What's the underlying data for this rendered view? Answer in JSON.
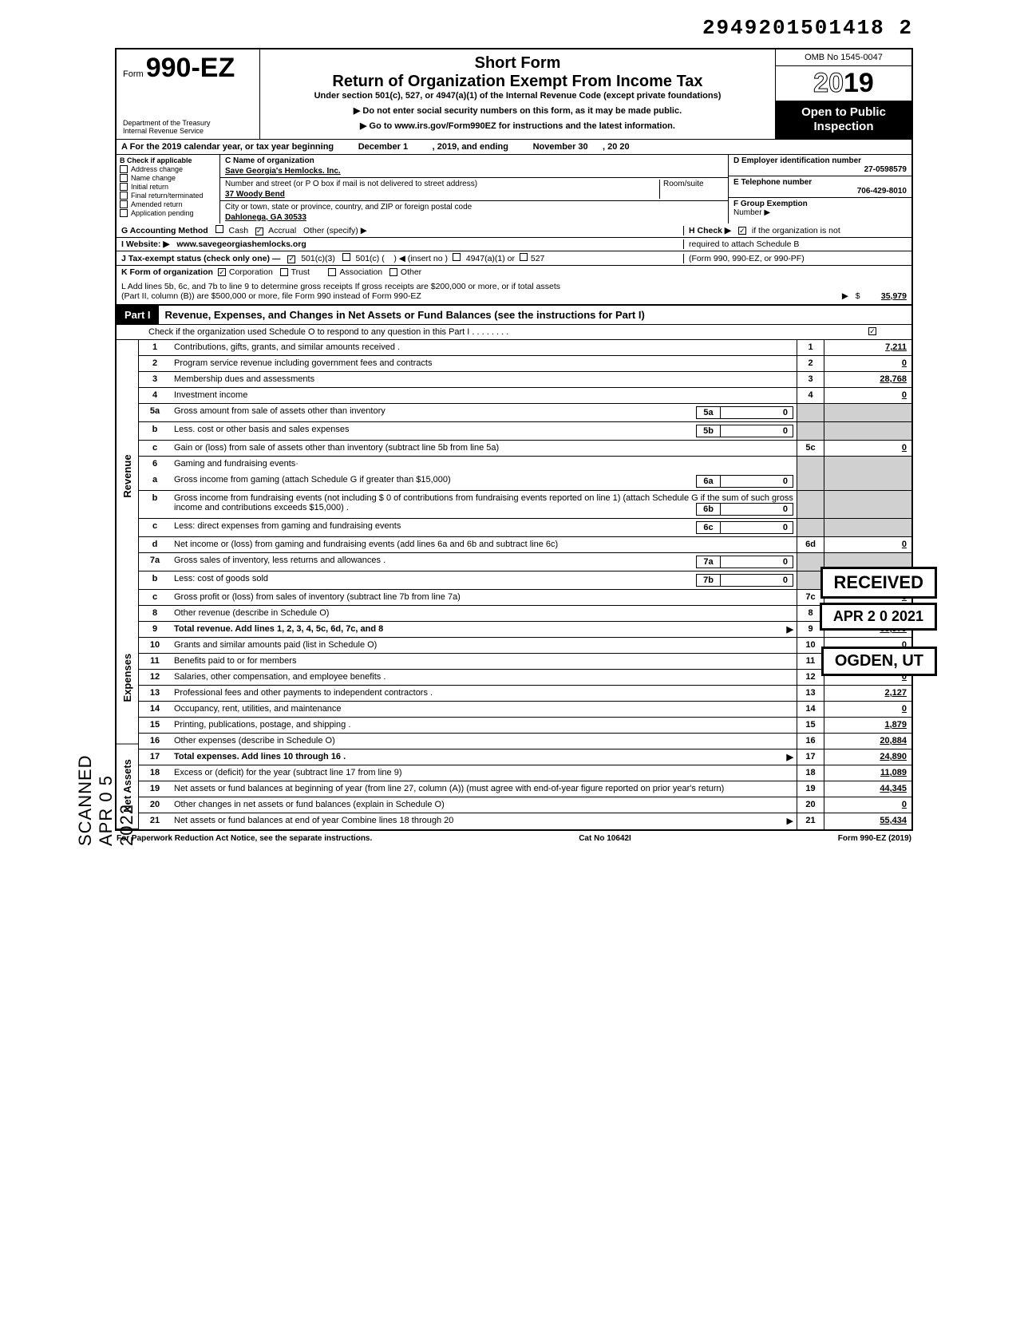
{
  "header_number": "2949201501418 2",
  "form": {
    "form_label": "Form",
    "form_number": "990-EZ",
    "dept1": "Department of the Treasury",
    "dept2": "Internal Revenue Service",
    "short_form": "Short Form",
    "main_title": "Return of Organization Exempt From Income Tax",
    "subtitle": "Under section 501(c), 527, or 4947(a)(1) of the Internal Revenue Code (except private foundations)",
    "instr1": "▶ Do not enter social security numbers on this form, as it may be made public.",
    "instr2": "▶ Go to www.irs.gov/Form990EZ for instructions and the latest information.",
    "omb": "OMB No 1545-0047",
    "year": "2019",
    "open1": "Open to Public",
    "open2": "Inspection"
  },
  "line_a": {
    "prefix": "A For the 2019 calendar year, or tax year beginning",
    "begin": "December 1",
    "mid": ", 2019, and ending",
    "end": "November 30",
    "yr": ", 20   20"
  },
  "col_b": {
    "header": "B Check if applicable",
    "opts": [
      "Address change",
      "Name change",
      "Initial return",
      "Final return/terminated",
      "Amended return",
      "Application pending"
    ]
  },
  "col_c": {
    "c_label": "C  Name of organization",
    "name": "Save Georgia's Hemlocks. Inc.",
    "addr_label": "Number and street (or P O  box if mail is not delivered to street address)",
    "room_label": "Room/suite",
    "street": "37 Woody Bend",
    "city_label": "City or town, state or province, country, and ZIP or foreign postal code",
    "city": "Dahlonega, GA  30533"
  },
  "col_right": {
    "d_label": "D Employer identification number",
    "ein": "27-0598579",
    "e_label": "E Telephone number",
    "phone": "706-429-8010",
    "f_label": "F Group Exemption",
    "f_label2": "Number ▶"
  },
  "meta": {
    "g_label": "G  Accounting Method",
    "g_cash": "Cash",
    "g_accrual": "Accrual",
    "g_other": "Other (specify) ▶",
    "h_label": "H  Check ▶",
    "h_text": "if the organization is not",
    "h_text2": "required to attach Schedule B",
    "h_text3": "(Form 990, 990-EZ, or 990-PF)",
    "i_label": "I  Website: ▶",
    "website": "www.savegeorgiashemlocks.org",
    "j_label": "J  Tax-exempt status (check only one) —",
    "j1": "501(c)(3)",
    "j2": "501(c) (",
    "j2b": ") ◀ (insert no )",
    "j3": "4947(a)(1) or",
    "j4": "527",
    "k_label": "K  Form of organization",
    "k1": "Corporation",
    "k2": "Trust",
    "k3": "Association",
    "k4": "Other"
  },
  "l_line": {
    "text1": "L  Add lines 5b, 6c, and 7b to line 9 to determine gross receipts  If gross receipts are $200,000 or more, or if total assets",
    "text2": "(Part II, column (B)) are $500,000 or more, file Form 990 instead of Form 990-EZ",
    "arrow": "▶",
    "dollar": "$",
    "amount": "35,979"
  },
  "part1": {
    "badge": "Part I",
    "title": "Revenue, Expenses, and Changes in Net Assets or Fund Balances (see the instructions for Part I)",
    "sub": "Check if the organization used Schedule O to respond to any question in this Part I  .    .    .    .    .    .    .    .",
    "sub_chk": "✓"
  },
  "side_labels": {
    "revenue": "Revenue",
    "expenses": "Expenses",
    "netassets": "Net Assets"
  },
  "lines": [
    {
      "num": "1",
      "desc": "Contributions, gifts, grants, and similar amounts received .",
      "box": "1",
      "amt": "7,211"
    },
    {
      "num": "2",
      "desc": "Program service revenue including government fees and contracts",
      "box": "2",
      "amt": "0"
    },
    {
      "num": "3",
      "desc": "Membership dues and assessments",
      "box": "3",
      "amt": "28,768"
    },
    {
      "num": "4",
      "desc": "Investment income",
      "box": "4",
      "amt": "0"
    },
    {
      "num": "5a",
      "desc": "Gross amount from sale of assets other than inventory",
      "inner_num": "5a",
      "inner_val": "0",
      "shaded": true
    },
    {
      "num": "b",
      "desc": "Less. cost or other basis and sales expenses",
      "inner_num": "5b",
      "inner_val": "0",
      "shaded": true
    },
    {
      "num": "c",
      "desc": "Gain or (loss) from sale of assets other than inventory (subtract line 5b from line 5a)",
      "box": "5c",
      "amt": "0"
    },
    {
      "num": "6",
      "desc": "Gaming and fundraising events·",
      "shaded": true,
      "noborder": true
    },
    {
      "num": "a",
      "desc": "Gross income from gaming (attach Schedule G if greater than $15,000)",
      "inner_num": "6a",
      "inner_val": "0",
      "shaded": true
    },
    {
      "num": "b",
      "desc": "Gross income from fundraising events (not including  $                     0 of contributions from fundraising events reported on line 1) (attach Schedule G if the sum of such gross income and contributions exceeds $15,000) .",
      "inner_num": "6b",
      "inner_val": "0",
      "shaded": true
    },
    {
      "num": "c",
      "desc": "Less: direct expenses from gaming and fundraising events",
      "inner_num": "6c",
      "inner_val": "0",
      "shaded": true
    },
    {
      "num": "d",
      "desc": "Net income or (loss) from gaming and fundraising events (add lines 6a and 6b and subtract line 6c)",
      "box": "6d",
      "amt": "0"
    },
    {
      "num": "7a",
      "desc": "Gross sales of inventory, less returns and allowances  .",
      "inner_num": "7a",
      "inner_val": "0",
      "shaded": true
    },
    {
      "num": "b",
      "desc": "Less: cost of goods sold",
      "inner_num": "7b",
      "inner_val": "0",
      "shaded": true
    },
    {
      "num": "c",
      "desc": "Gross profit or (loss) from sales of inventory (subtract line 7b from line 7a)",
      "box": "7c",
      "amt": "0"
    },
    {
      "num": "8",
      "desc": "Other revenue (describe in Schedule O)",
      "box": "8",
      "amt": "0"
    },
    {
      "num": "9",
      "desc": "Total revenue. Add lines 1, 2, 3, 4, 5c, 6d, 7c, and 8",
      "box": "9",
      "amt": "35,979",
      "bold": true,
      "arrow": true
    },
    {
      "num": "10",
      "desc": "Grants and similar amounts paid (list in Schedule O)",
      "box": "10",
      "amt": "0"
    },
    {
      "num": "11",
      "desc": "Benefits paid to or for members",
      "box": "11",
      "amt": "0"
    },
    {
      "num": "12",
      "desc": "Salaries, other compensation, and employee benefits .",
      "box": "12",
      "amt": "0"
    },
    {
      "num": "13",
      "desc": "Professional fees and other payments to independent contractors .",
      "box": "13",
      "amt": "2,127"
    },
    {
      "num": "14",
      "desc": "Occupancy, rent, utilities, and maintenance",
      "box": "14",
      "amt": "0"
    },
    {
      "num": "15",
      "desc": "Printing, publications, postage, and shipping .",
      "box": "15",
      "amt": "1,879"
    },
    {
      "num": "16",
      "desc": "Other expenses (describe in Schedule O)",
      "box": "16",
      "amt": "20,884"
    },
    {
      "num": "17",
      "desc": "Total expenses. Add lines 10 through 16 .",
      "box": "17",
      "amt": "24,890",
      "bold": true,
      "arrow": true
    },
    {
      "num": "18",
      "desc": "Excess or (deficit) for the year (subtract line 17 from line 9)",
      "box": "18",
      "amt": "11,089"
    },
    {
      "num": "19",
      "desc": "Net assets or fund balances at beginning of year (from line 27, column (A)) (must agree with end-of-year figure reported on prior year's return)",
      "box": "19",
      "amt": "44,345"
    },
    {
      "num": "20",
      "desc": "Other changes in net assets or fund balances (explain in Schedule O)",
      "box": "20",
      "amt": "0"
    },
    {
      "num": "21",
      "desc": "Net assets or fund balances at end of year  Combine lines 18 through 20",
      "box": "21",
      "amt": "55,434",
      "arrow": true
    }
  ],
  "stamps": {
    "received": "RECEIVED",
    "date": "APR 2 0 2021",
    "ogden": "OGDEN, UT",
    "scanned": "SCANNED APR 0 5 2022"
  },
  "footer": {
    "left": "For Paperwork Reduction Act Notice, see the separate instructions.",
    "mid": "Cat  No  10642I",
    "right": "Form 990-EZ (2019)"
  },
  "colors": {
    "black": "#000000",
    "white": "#ffffff",
    "shade": "#d0d0d0"
  }
}
